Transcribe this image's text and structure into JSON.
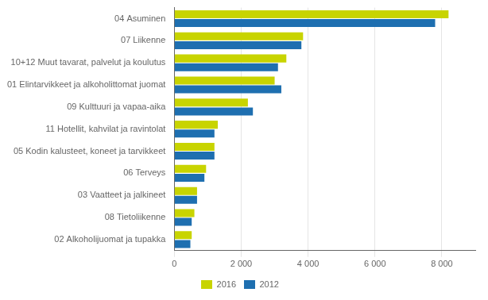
{
  "chart_data": {
    "type": "bar",
    "orientation": "horizontal",
    "categories": [
      "04 Asuminen",
      "07 Liikenne",
      "10+12 Muut tavarat, palvelut ja koulutus",
      "01 Elintarvikkeet ja alkoholittomat juomat",
      "09 Kulttuuri ja vapaa-aika",
      "11 Hotellit, kahvilat ja ravintolat",
      "05 Kodin kalusteet, koneet ja tarvikkeet",
      "06 Terveys",
      "03 Vaatteet ja jalkineet",
      "08 Tietoliikenne",
      "02 Alkoholijuomat ja tupakka"
    ],
    "series": [
      {
        "name": "2016",
        "color": "#c8d400",
        "values": [
          8200,
          3850,
          3350,
          3000,
          2200,
          1300,
          1200,
          950,
          680,
          600,
          520
        ]
      },
      {
        "name": "2012",
        "color": "#1e6fb0",
        "values": [
          7800,
          3800,
          3100,
          3200,
          2350,
          1200,
          1200,
          900,
          680,
          520,
          480
        ]
      }
    ],
    "xlim": [
      0,
      9000
    ],
    "xticks": [
      0,
      {
        "value": 2000,
        "label": "2 000"
      },
      {
        "value": 4000,
        "label": "4 000"
      },
      {
        "value": 6000,
        "label": "6 000"
      },
      {
        "value": 8000,
        "label": "8 000"
      }
    ],
    "grid": true,
    "legend": "bottom"
  }
}
